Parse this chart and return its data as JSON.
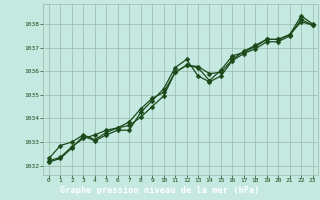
{
  "title": "Graphe pression niveau de la mer (hPa)",
  "bg_color": "#c5e8e0",
  "grid_color": "#99bbaa",
  "line_color": "#1a4a1a",
  "label_bg": "#2a6a2a",
  "label_fg": "#ffffff",
  "xlim": [
    -0.5,
    23.5
  ],
  "ylim": [
    1031.6,
    1038.85
  ],
  "yticks": [
    1032,
    1033,
    1034,
    1035,
    1036,
    1037,
    1038
  ],
  "xticks": [
    0,
    1,
    2,
    3,
    4,
    5,
    6,
    7,
    8,
    9,
    10,
    11,
    12,
    13,
    14,
    15,
    16,
    17,
    18,
    19,
    20,
    21,
    22,
    23
  ],
  "series1": [
    1032.2,
    1032.35,
    1032.8,
    1033.15,
    1033.3,
    1033.5,
    1033.6,
    1033.7,
    1034.05,
    1034.5,
    1034.95,
    1035.95,
    1036.25,
    1036.15,
    1035.6,
    1036.05,
    1036.65,
    1036.8,
    1037.05,
    1037.35,
    1037.35,
    1037.55,
    1038.35,
    1038.0
  ],
  "series2": [
    1032.15,
    1032.3,
    1032.75,
    1033.25,
    1033.05,
    1033.3,
    1033.5,
    1033.5,
    1034.25,
    1034.75,
    1035.25,
    1036.15,
    1036.5,
    1035.8,
    1035.55,
    1035.8,
    1036.45,
    1036.75,
    1036.95,
    1037.25,
    1037.25,
    1037.5,
    1038.2,
    1037.95
  ],
  "series3": [
    1032.3,
    1032.85,
    1033.0,
    1033.3,
    1033.1,
    1033.4,
    1033.6,
    1033.85,
    1034.4,
    1034.85,
    1035.1,
    1035.95,
    1036.25,
    1036.2,
    1035.9,
    1035.95,
    1036.5,
    1036.85,
    1037.1,
    1037.35,
    1037.35,
    1037.55,
    1038.1,
    1037.95
  ],
  "marker_size": 2.5,
  "linewidth": 0.9
}
